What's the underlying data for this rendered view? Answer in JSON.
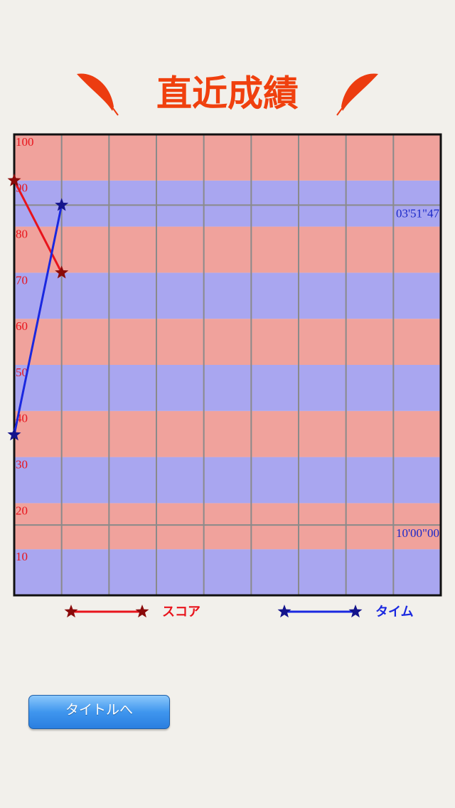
{
  "chart_data": {
    "type": "line",
    "title": "直近成績",
    "x": [
      1,
      2
    ],
    "xlim": [
      1,
      10
    ],
    "ylim": [
      0,
      100
    ],
    "yticks": [
      10,
      20,
      30,
      40,
      50,
      60,
      70,
      80,
      90,
      100
    ],
    "y2lim": [
      681,
      150
    ],
    "y2ticks": [
      {
        "value": 231.47,
        "label": "03'51\"47"
      },
      {
        "value": 600,
        "label": "10'00\"00"
      }
    ],
    "series": [
      {
        "name": "スコア",
        "color": "#e8141c",
        "marker_color": "#8a0a0a",
        "values": [
          90,
          70
        ]
      },
      {
        "name": "タイム",
        "color": "#1a28e0",
        "marker_color": "#14148c",
        "axis": "y2",
        "values": [
          496,
          231.47
        ]
      }
    ],
    "band_colors": [
      "#a9a6f0",
      "#f0a29c"
    ]
  },
  "button": {
    "label": "タイトルへ"
  }
}
